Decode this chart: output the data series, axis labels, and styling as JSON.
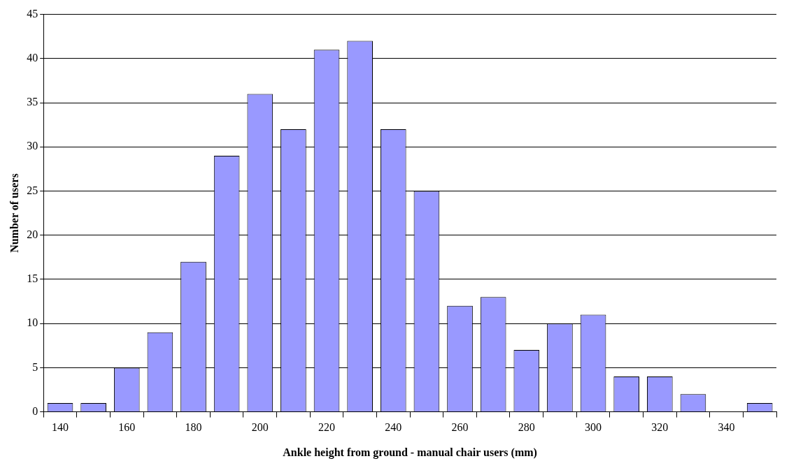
{
  "chart_data": {
    "type": "bar",
    "xlabel": "Ankle height from ground - manual chair users (mm)",
    "ylabel": "Number of users",
    "categories": [
      "140",
      null,
      "160",
      null,
      "180",
      null,
      "200",
      null,
      "220",
      null,
      "240",
      null,
      "260",
      null,
      "280",
      null,
      "300",
      null,
      "320",
      null,
      "340",
      null
    ],
    "values": [
      1,
      1,
      5,
      9,
      17,
      29,
      36,
      32,
      41,
      42,
      32,
      25,
      12,
      13,
      7,
      10,
      11,
      4,
      4,
      2,
      0,
      1
    ],
    "color": "#9999ff",
    "ylim": [
      0,
      45
    ],
    "yticks": [
      0,
      5,
      10,
      15,
      20,
      25,
      30,
      35,
      40,
      45
    ],
    "grid": "y",
    "legend": false
  }
}
